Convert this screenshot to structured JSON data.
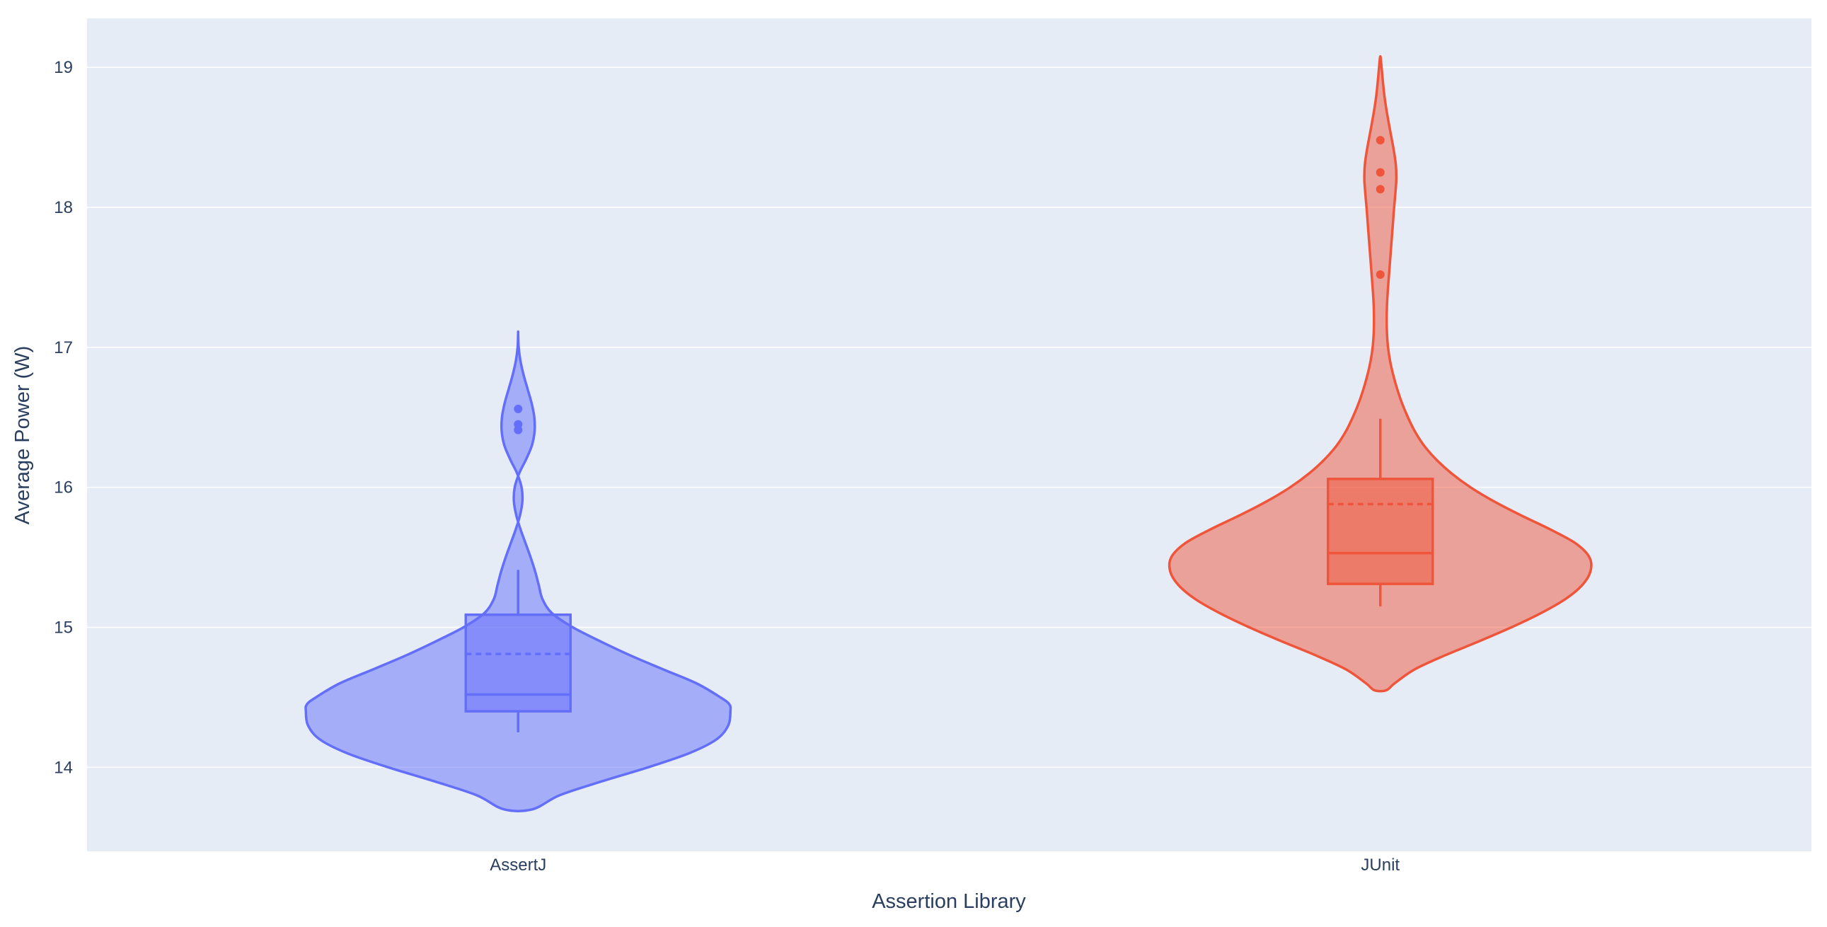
{
  "chart_data": {
    "type": "violin",
    "xlabel": "Assertion Library",
    "ylabel": "Average Power (W)",
    "ylim": [
      13.4,
      19.35
    ],
    "yticks": [
      14,
      15,
      16,
      17,
      18,
      19
    ],
    "grid": true,
    "legend": "none",
    "categories": [
      "AssertJ",
      "JUnit"
    ],
    "series": [
      {
        "category": "AssertJ",
        "color": "#636efa",
        "fill": "rgba(99,110,250,0.5)",
        "range": [
          13.7,
          17.1
        ],
        "box": {
          "q1": 14.4,
          "median": 14.52,
          "q3": 15.09,
          "lower_whisker": 14.25,
          "upper_whisker": 15.41,
          "mean": 14.81
        },
        "outliers": [
          16.56,
          16.45,
          16.41
        ],
        "density": [
          [
            13.7,
            0.03
          ],
          [
            13.8,
            0.18
          ],
          [
            13.9,
            0.39
          ],
          [
            14.0,
            0.62
          ],
          [
            14.1,
            0.82
          ],
          [
            14.2,
            0.96
          ],
          [
            14.3,
            1.0
          ],
          [
            14.4,
            1.0
          ],
          [
            14.45,
            1.0
          ],
          [
            14.5,
            0.98
          ],
          [
            14.6,
            0.85
          ],
          [
            14.7,
            0.68
          ],
          [
            14.8,
            0.52
          ],
          [
            14.9,
            0.39
          ],
          [
            15.0,
            0.25
          ],
          [
            15.1,
            0.14
          ],
          [
            15.2,
            0.11
          ],
          [
            15.3,
            0.1
          ],
          [
            15.4,
            0.08
          ],
          [
            15.5,
            0.06
          ],
          [
            15.6,
            0.035
          ],
          [
            15.7,
            0.01
          ],
          [
            15.8,
            -0.01
          ],
          [
            15.9,
            -0.025
          ],
          [
            16.0,
            -0.02
          ],
          [
            16.1,
            0.0
          ],
          [
            16.2,
            0.04
          ],
          [
            16.3,
            0.07
          ],
          [
            16.4,
            0.08
          ],
          [
            16.5,
            0.08
          ],
          [
            16.6,
            0.065
          ],
          [
            16.7,
            0.045
          ],
          [
            16.8,
            0.025
          ],
          [
            16.9,
            0.01
          ],
          [
            17.0,
            0.0
          ],
          [
            17.1,
            0.0
          ]
        ]
      },
      {
        "category": "JUnit",
        "color": "#ef553b",
        "fill": "rgba(239,85,59,0.5)",
        "range": [
          14.55,
          19.07
        ],
        "box": {
          "q1": 15.31,
          "median": 15.53,
          "q3": 16.06,
          "lower_whisker": 15.15,
          "upper_whisker": 16.49,
          "mean": 15.88
        },
        "outliers": [
          18.48,
          18.25,
          18.13,
          17.52
        ],
        "density": [
          [
            14.55,
            0.02
          ],
          [
            14.6,
            0.05
          ],
          [
            14.7,
            0.15
          ],
          [
            14.8,
            0.3
          ],
          [
            14.9,
            0.47
          ],
          [
            15.0,
            0.62
          ],
          [
            15.1,
            0.76
          ],
          [
            15.2,
            0.88
          ],
          [
            15.3,
            0.96
          ],
          [
            15.4,
            1.0
          ],
          [
            15.5,
            1.0
          ],
          [
            15.6,
            0.94
          ],
          [
            15.7,
            0.8
          ],
          [
            15.8,
            0.66
          ],
          [
            15.9,
            0.53
          ],
          [
            16.0,
            0.42
          ],
          [
            16.1,
            0.33
          ],
          [
            16.2,
            0.26
          ],
          [
            16.3,
            0.2
          ],
          [
            16.4,
            0.16
          ],
          [
            16.5,
            0.13
          ],
          [
            16.6,
            0.1
          ],
          [
            16.7,
            0.08
          ],
          [
            16.8,
            0.06
          ],
          [
            16.9,
            0.045
          ],
          [
            17.0,
            0.035
          ],
          [
            17.1,
            0.03
          ],
          [
            17.2,
            0.03
          ],
          [
            17.3,
            0.03
          ],
          [
            17.4,
            0.035
          ],
          [
            17.5,
            0.04
          ],
          [
            17.6,
            0.045
          ],
          [
            17.7,
            0.05
          ],
          [
            17.8,
            0.055
          ],
          [
            17.9,
            0.06
          ],
          [
            18.0,
            0.065
          ],
          [
            18.1,
            0.07
          ],
          [
            18.2,
            0.078
          ],
          [
            18.3,
            0.075
          ],
          [
            18.4,
            0.065
          ],
          [
            18.5,
            0.052
          ],
          [
            18.6,
            0.04
          ],
          [
            18.7,
            0.028
          ],
          [
            18.8,
            0.018
          ],
          [
            18.9,
            0.012
          ],
          [
            19.0,
            0.006
          ],
          [
            19.07,
            0.0
          ]
        ]
      }
    ]
  }
}
